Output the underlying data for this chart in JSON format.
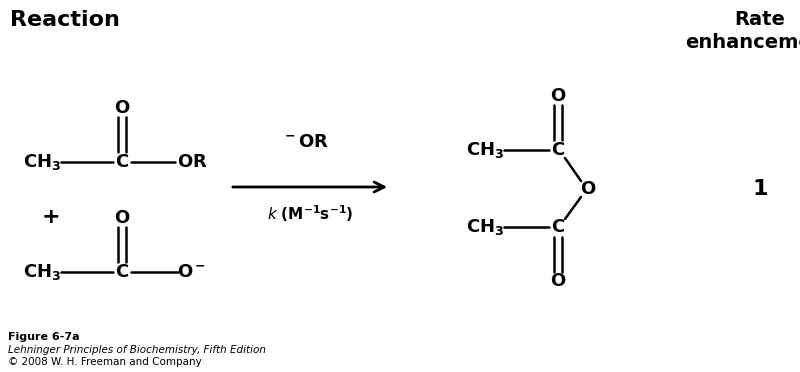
{
  "bg_color": "#ffffff",
  "title_reaction": "Reaction",
  "title_rate": "Rate\nenhancement",
  "fig_caption_line1": "Figure 6-7a",
  "fig_caption_line2": "Lehninger Principles of Biochemistry, Fifth Edition",
  "fig_caption_line3": "© 2008 W. H. Freeman and Company",
  "rate_value": "1"
}
